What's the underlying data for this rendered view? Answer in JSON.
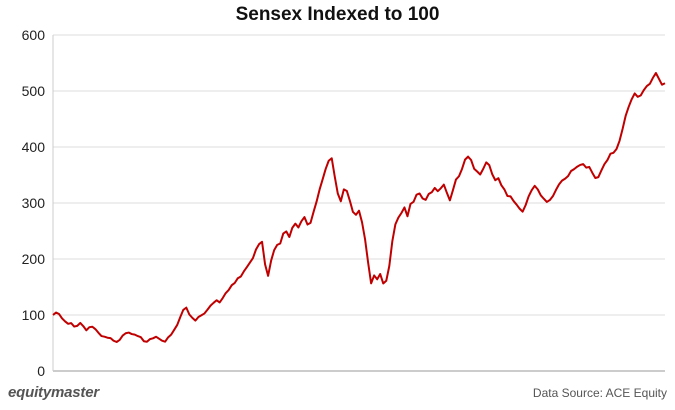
{
  "chart_data": {
    "type": "line",
    "title": "Sensex Indexed to 100",
    "xlabel": "",
    "ylabel": "",
    "ylim": [
      0,
      600
    ],
    "yticks": [
      0,
      100,
      200,
      300,
      400,
      500,
      600
    ],
    "grid": true,
    "legend": "none",
    "line_color": "#c00000",
    "series": [
      {
        "values": [
          100,
          108,
          102,
          96,
          90,
          86,
          88,
          80,
          78,
          84,
          80,
          72,
          75,
          79,
          74,
          70,
          66,
          63,
          62,
          60,
          57,
          54,
          58,
          61,
          64,
          66,
          64,
          61,
          59,
          58,
          57,
          55,
          58,
          60,
          62,
          60,
          58,
          56,
          58,
          64,
          72,
          82,
          94,
          106,
          112,
          104,
          96,
          92,
          97,
          100,
          104,
          110,
          116,
          120,
          124,
          122,
          128,
          136,
          142,
          150,
          158,
          166,
          172,
          178,
          186,
          194,
          204,
          214,
          224,
          228,
          188,
          168,
          194,
          212,
          222,
          230,
          246,
          252,
          240,
          256,
          266,
          258,
          264,
          272,
          258,
          262,
          282,
          300,
          322,
          342,
          364,
          376,
          382,
          350,
          320,
          306,
          328,
          318,
          300,
          282,
          276,
          286,
          262,
          232,
          196,
          160,
          172,
          166,
          176,
          160,
          162,
          190,
          228,
          258,
          272,
          280,
          290,
          276,
          296,
          306,
          316,
          320,
          312,
          306,
          316,
          322,
          328,
          318,
          326,
          330,
          316,
          304,
          322,
          338,
          350,
          364,
          378,
          386,
          380,
          362,
          358,
          350,
          360,
          372,
          364,
          350,
          340,
          344,
          330,
          326,
          316,
          312,
          304,
          300,
          292,
          288,
          296,
          310,
          320,
          328,
          324,
          312,
          304,
          300,
          306,
          314,
          326,
          336,
          342,
          346,
          348,
          356,
          360,
          364,
          366,
          368,
          360,
          362,
          354,
          346,
          350,
          360,
          372,
          380,
          388,
          390,
          396,
          410,
          430,
          452,
          470,
          482,
          494,
          490,
          496,
          504,
          510,
          516,
          524,
          534,
          524,
          508,
          512
        ]
      }
    ]
  },
  "footer": {
    "brand": "equitymaster",
    "source": "Data Source: ACE Equity"
  }
}
